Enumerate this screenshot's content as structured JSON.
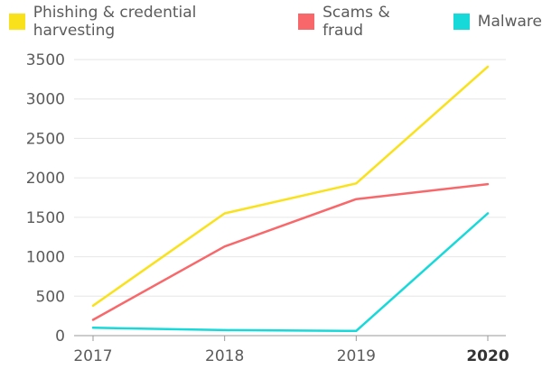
{
  "chart_data": {
    "type": "line",
    "x": [
      "2017",
      "2018",
      "2019",
      "2020"
    ],
    "x_bold": [
      "2020"
    ],
    "series": [
      {
        "name": "Phishing & credential harvesting",
        "color": "#f9e21b",
        "values": [
          380,
          1550,
          1930,
          3410
        ]
      },
      {
        "name": "Scams & fraud",
        "color": "#f8686b",
        "values": [
          200,
          1130,
          1730,
          1920
        ]
      },
      {
        "name": "Malware",
        "color": "#18d9d9",
        "values": [
          100,
          70,
          60,
          1550
        ]
      }
    ],
    "ylim": [
      0,
      3500
    ],
    "yticks": [
      0,
      500,
      1000,
      1500,
      2000,
      2500,
      3000,
      3500
    ],
    "grid": true,
    "legend_position": "top-left",
    "title": "",
    "xlabel": "",
    "ylabel": ""
  }
}
